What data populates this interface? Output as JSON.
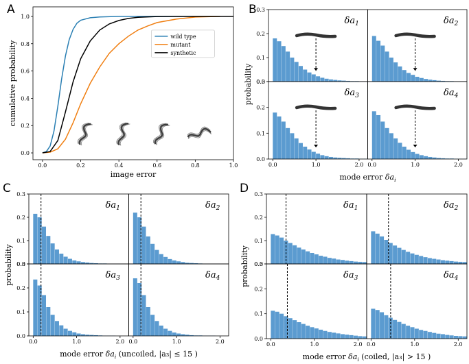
{
  "colors": {
    "wild_type": "#2a7fb3",
    "mutant": "#f07f12",
    "synthetic": "#000000",
    "bar": "#5b9bd0",
    "worm": "#333333"
  },
  "chart_data": [
    {
      "id": "A",
      "type": "line",
      "panel_letter": "A",
      "xlabel": "image error",
      "ylabel": "cumulative probability",
      "xlim": [
        -0.05,
        1.0
      ],
      "ylim": [
        -0.05,
        1.07
      ],
      "xticks": [
        "0.0",
        "0.2",
        "0.4",
        "0.6",
        "0.8",
        "1.0"
      ],
      "yticks": [
        "0.0",
        "0.2",
        "0.4",
        "0.6",
        "0.8",
        "1.0"
      ],
      "legend_position": "upper-right",
      "worm_insets_x": [
        0.22,
        0.42,
        0.62,
        0.82
      ],
      "series": [
        {
          "name": "wild type",
          "color_key": "wild_type",
          "x": [
            0.0,
            0.02,
            0.04,
            0.06,
            0.08,
            0.1,
            0.12,
            0.14,
            0.16,
            0.18,
            0.2,
            0.25,
            0.3,
            0.4,
            0.5,
            0.93
          ],
          "y": [
            0.0,
            0.01,
            0.05,
            0.16,
            0.34,
            0.54,
            0.71,
            0.83,
            0.905,
            0.95,
            0.972,
            0.99,
            0.996,
            1.0,
            1.0,
            1.0
          ]
        },
        {
          "name": "mutant",
          "color_key": "mutant",
          "x": [
            0.0,
            0.04,
            0.08,
            0.12,
            0.16,
            0.2,
            0.25,
            0.3,
            0.35,
            0.4,
            0.45,
            0.5,
            0.55,
            0.6,
            0.7,
            0.8,
            0.93
          ],
          "y": [
            0.0,
            0.005,
            0.03,
            0.1,
            0.22,
            0.36,
            0.51,
            0.63,
            0.73,
            0.8,
            0.855,
            0.9,
            0.93,
            0.955,
            0.98,
            0.995,
            1.0
          ]
        },
        {
          "name": "synthetic",
          "color_key": "synthetic",
          "x": [
            0.0,
            0.04,
            0.08,
            0.12,
            0.16,
            0.2,
            0.25,
            0.3,
            0.35,
            0.4,
            0.45,
            0.5,
            0.6,
            0.7,
            1.0
          ],
          "y": [
            0.0,
            0.01,
            0.09,
            0.3,
            0.52,
            0.69,
            0.82,
            0.9,
            0.945,
            0.97,
            0.985,
            0.993,
            0.999,
            1.0,
            1.0
          ]
        }
      ]
    },
    {
      "id": "B",
      "type": "bar",
      "panel_letter": "B",
      "xlabel_main": "mode error",
      "xlabel_sym": "δa",
      "xlabel_sub": "i",
      "xlabel_suffix": "",
      "ylabel": "probability",
      "xlim": [
        -0.1,
        2.2
      ],
      "ylim": [
        0,
        0.3
      ],
      "xticks": [
        "0.0",
        "1.0",
        "2.0"
      ],
      "yticks": [
        "0.0",
        "0.1",
        "0.2",
        "0.3"
      ],
      "bin_width": 0.1,
      "bin_start": 0.0,
      "subplots": [
        {
          "label_sym": "δa",
          "label_sub": "1",
          "marker_x": 1.0,
          "worm_inset": true,
          "values": [
            0.18,
            0.168,
            0.148,
            0.125,
            0.1,
            0.082,
            0.065,
            0.05,
            0.038,
            0.03,
            0.022,
            0.016,
            0.012,
            0.009,
            0.007,
            0.005,
            0.004,
            0.003,
            0.002,
            0.002,
            0.001,
            0.001
          ]
        },
        {
          "label_sym": "δa",
          "label_sub": "2",
          "marker_x": 1.0,
          "worm_inset": true,
          "values": [
            0.19,
            0.17,
            0.15,
            0.125,
            0.1,
            0.08,
            0.063,
            0.048,
            0.036,
            0.028,
            0.02,
            0.015,
            0.011,
            0.008,
            0.006,
            0.004,
            0.003,
            0.002,
            0.002,
            0.001,
            0.001,
            0.001
          ]
        },
        {
          "label_sym": "δa",
          "label_sub": "3",
          "marker_x": 1.0,
          "worm_inset": true,
          "values": [
            0.18,
            0.165,
            0.145,
            0.12,
            0.1,
            0.08,
            0.062,
            0.048,
            0.037,
            0.028,
            0.021,
            0.015,
            0.011,
            0.008,
            0.006,
            0.005,
            0.004,
            0.003,
            0.002,
            0.002,
            0.001,
            0.001
          ]
        },
        {
          "label_sym": "δa",
          "label_sub": "4",
          "marker_x": 1.0,
          "worm_inset": true,
          "values": [
            0.185,
            0.17,
            0.145,
            0.12,
            0.1,
            0.08,
            0.063,
            0.048,
            0.036,
            0.027,
            0.02,
            0.015,
            0.011,
            0.008,
            0.006,
            0.004,
            0.003,
            0.002,
            0.002,
            0.001,
            0.001,
            0.001
          ]
        }
      ]
    },
    {
      "id": "C",
      "type": "bar",
      "panel_letter": "C",
      "xlabel_main": "mode error",
      "xlabel_sym": "δa",
      "xlabel_sub": "i",
      "xlabel_suffix": "(uncoiled, |a₃| ≤ 15 )",
      "ylabel": "probability",
      "xlim": [
        -0.1,
        2.2
      ],
      "ylim": [
        0,
        0.3
      ],
      "xticks": [
        "0.0",
        "1.0",
        "2.0"
      ],
      "yticks": [
        "0.0",
        "0.1",
        "0.2",
        "0.3"
      ],
      "bin_width": 0.1,
      "bin_start": 0.0,
      "subplots": [
        {
          "label_sym": "δa",
          "label_sub": "1",
          "marker_x": 0.18,
          "worm_inset": false,
          "values": [
            0.215,
            0.2,
            0.16,
            0.12,
            0.088,
            0.062,
            0.044,
            0.031,
            0.022,
            0.015,
            0.011,
            0.008,
            0.006,
            0.004,
            0.003,
            0.002,
            0.002,
            0.001,
            0.001,
            0.001,
            0.0,
            0.0
          ]
        },
        {
          "label_sym": "δa",
          "label_sub": "2",
          "marker_x": 0.18,
          "worm_inset": false,
          "values": [
            0.22,
            0.2,
            0.16,
            0.118,
            0.086,
            0.06,
            0.042,
            0.03,
            0.021,
            0.015,
            0.011,
            0.008,
            0.005,
            0.004,
            0.003,
            0.002,
            0.001,
            0.001,
            0.001,
            0.001,
            0.0,
            0.0
          ]
        },
        {
          "label_sym": "δa",
          "label_sub": "3",
          "marker_x": 0.18,
          "worm_inset": false,
          "values": [
            0.235,
            0.21,
            0.17,
            0.12,
            0.088,
            0.062,
            0.044,
            0.03,
            0.021,
            0.015,
            0.01,
            0.007,
            0.005,
            0.004,
            0.003,
            0.002,
            0.001,
            0.001,
            0.001,
            0.0,
            0.0,
            0.0
          ]
        },
        {
          "label_sym": "δa",
          "label_sub": "4",
          "marker_x": 0.18,
          "worm_inset": false,
          "values": [
            0.24,
            0.22,
            0.17,
            0.12,
            0.088,
            0.062,
            0.043,
            0.03,
            0.021,
            0.014,
            0.01,
            0.007,
            0.005,
            0.003,
            0.002,
            0.002,
            0.001,
            0.001,
            0.001,
            0.0,
            0.0,
            0.0
          ]
        }
      ]
    },
    {
      "id": "D",
      "type": "bar",
      "panel_letter": "D",
      "xlabel_main": "mode error",
      "xlabel_sym": "δa",
      "xlabel_sub": "i",
      "xlabel_suffix": "(coiled, |a₃| > 15 )",
      "ylabel": "probability",
      "xlim": [
        -0.1,
        2.2
      ],
      "ylim": [
        0,
        0.3
      ],
      "xticks": [
        "0.0",
        "1.0",
        "2.0"
      ],
      "yticks": [
        "0.0",
        "0.1",
        "0.2",
        "0.3"
      ],
      "bin_width": 0.1,
      "bin_start": 0.0,
      "subplots": [
        {
          "label_sym": "δa",
          "label_sub": "1",
          "marker_x": 0.35,
          "worm_inset": false,
          "values": [
            0.128,
            0.122,
            0.113,
            0.1,
            0.09,
            0.08,
            0.07,
            0.062,
            0.054,
            0.047,
            0.041,
            0.035,
            0.031,
            0.026,
            0.023,
            0.019,
            0.017,
            0.014,
            0.012,
            0.01,
            0.009,
            0.008
          ]
        },
        {
          "label_sym": "δa",
          "label_sub": "2",
          "marker_x": 0.4,
          "worm_inset": false,
          "values": [
            0.14,
            0.13,
            0.118,
            0.103,
            0.09,
            0.079,
            0.069,
            0.06,
            0.052,
            0.045,
            0.039,
            0.034,
            0.029,
            0.025,
            0.022,
            0.019,
            0.016,
            0.014,
            0.012,
            0.01,
            0.009,
            0.008
          ]
        },
        {
          "label_sym": "δa",
          "label_sub": "3",
          "marker_x": 0.38,
          "worm_inset": false,
          "values": [
            0.112,
            0.108,
            0.1,
            0.09,
            0.082,
            0.074,
            0.066,
            0.059,
            0.052,
            0.046,
            0.041,
            0.036,
            0.031,
            0.027,
            0.024,
            0.021,
            0.018,
            0.016,
            0.014,
            0.012,
            0.01,
            0.009
          ]
        },
        {
          "label_sym": "δa",
          "label_sub": "4",
          "marker_x": 0.45,
          "worm_inset": false,
          "values": [
            0.12,
            0.115,
            0.106,
            0.094,
            0.084,
            0.075,
            0.067,
            0.059,
            0.052,
            0.046,
            0.04,
            0.035,
            0.031,
            0.027,
            0.023,
            0.02,
            0.018,
            0.015,
            0.013,
            0.011,
            0.01,
            0.009
          ]
        }
      ]
    }
  ]
}
